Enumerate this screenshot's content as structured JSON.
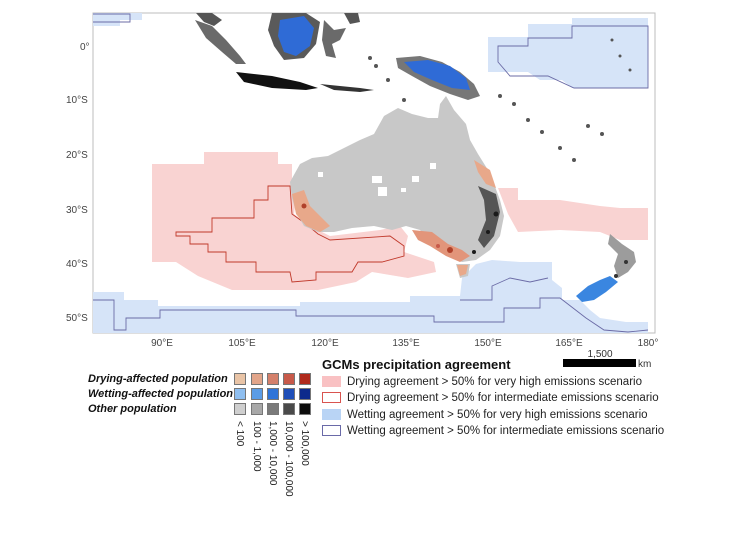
{
  "map": {
    "lat_labels": [
      "0°",
      "10°S",
      "20°S",
      "30°S",
      "40°S",
      "50°S"
    ],
    "lon_labels": [
      "90°E",
      "105°E",
      "120°E",
      "135°E",
      "150°E",
      "165°E",
      "180°"
    ],
    "scale": {
      "value": "1,500",
      "unit": "km"
    },
    "colors": {
      "land_other": "#c8c8c8",
      "drying_coast": "#e8a88a",
      "drying_high": "#f9c6c4",
      "drying_intermediate_outline": "#c0392b",
      "wetting_high": "#d3e2f8",
      "wetting_intermediate_outline": "#6b6ba6",
      "wetting_pop": "#2f6bd6",
      "dense_pop": "#444444"
    }
  },
  "legend": {
    "agreement_title": "GCMs precipitation agreement",
    "agreement_items": [
      {
        "label": "Drying agreement > 50% for very high emissions scenario",
        "fill": "#f9c1c3",
        "stroke": "#f9c1c3"
      },
      {
        "label": "Drying agreement > 50% for intermediate emissions scenario",
        "fill": "#ffffff",
        "stroke": "#d9534f"
      },
      {
        "label": "Wetting agreement > 50% for very high emissions scenario",
        "fill": "#b9d4f5",
        "stroke": "#b9d4f5"
      },
      {
        "label": "Wetting agreement > 50% for intermediate emissions scenario",
        "fill": "#ffffff",
        "stroke": "#6a6aa8"
      }
    ],
    "population_rows": [
      {
        "label": "Drying-affected population",
        "colors": [
          "#e9c4a6",
          "#e2a58a",
          "#d4806b",
          "#c85a4a",
          "#b02a1c"
        ]
      },
      {
        "label": "Wetting-affected population",
        "colors": [
          "#8fbff0",
          "#5b9ce6",
          "#2f74d8",
          "#1f4fb8",
          "#0d2a8c"
        ]
      },
      {
        "label": "Other population",
        "colors": [
          "#cfcfcf",
          "#a8a8a8",
          "#7a7a7a",
          "#4a4a4a",
          "#0d0d0d"
        ]
      }
    ],
    "population_classes": [
      "< 100",
      "100 - 1,000",
      "1,000 - 10,000",
      "10,000 - 100,000",
      "> 100,000"
    ]
  }
}
